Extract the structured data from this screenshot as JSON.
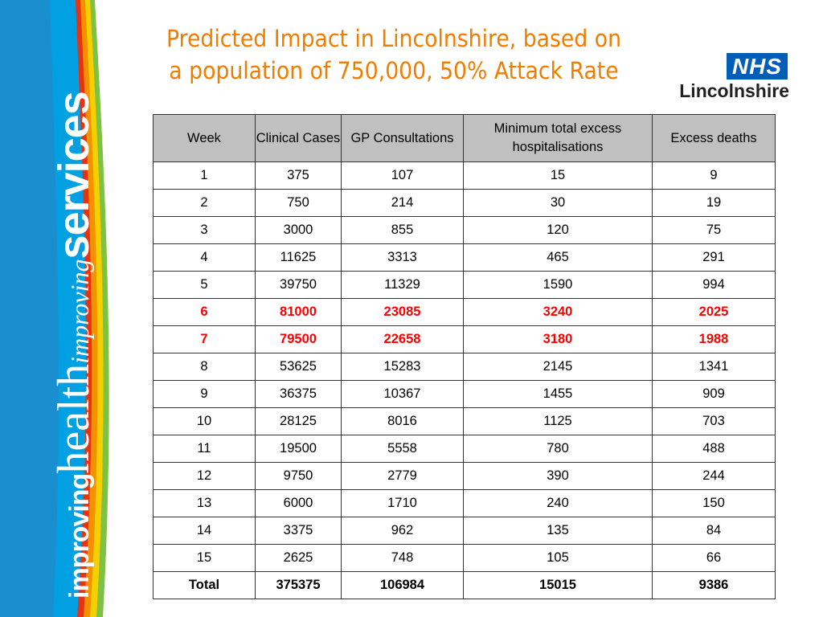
{
  "title_line1": "Predicted Impact in Lincolnshire, based on",
  "title_line2": "a population of 750,000, 50% Attack Rate",
  "logo": {
    "nhs": "NHS",
    "org": "Lincolnshire"
  },
  "banner": {
    "part1": "improving",
    "part2": "health",
    "part3": "improving",
    "part4": "services"
  },
  "colors": {
    "title": "#f07d00",
    "highlight": "#ff0000",
    "header_bg": "#c0c0c0",
    "nhs_blue": "#005eb8"
  },
  "table": {
    "headers": [
      "Week",
      "Clinical Cases",
      "GP Consultations",
      "Minimum total excess hospitalisations",
      "Excess deaths"
    ],
    "rows": [
      [
        "1",
        "375",
        "107",
        "15",
        "9"
      ],
      [
        "2",
        "750",
        "214",
        "30",
        "19"
      ],
      [
        "3",
        "3000",
        "855",
        "120",
        "75"
      ],
      [
        "4",
        "11625",
        "3313",
        "465",
        "291"
      ],
      [
        "5",
        "39750",
        "11329",
        "1590",
        "994"
      ],
      [
        "6",
        "81000",
        "23085",
        "3240",
        "2025"
      ],
      [
        "7",
        "79500",
        "22658",
        "3180",
        "1988"
      ],
      [
        "8",
        "53625",
        "15283",
        "2145",
        "1341"
      ],
      [
        "9",
        "36375",
        "10367",
        "1455",
        "909"
      ],
      [
        "10",
        "28125",
        "8016",
        "1125",
        "703"
      ],
      [
        "11",
        "19500",
        "5558",
        "780",
        "488"
      ],
      [
        "12",
        "9750",
        "2779",
        "390",
        "244"
      ],
      [
        "13",
        "6000",
        "1710",
        "240",
        "150"
      ],
      [
        "14",
        "3375",
        "962",
        "135",
        "84"
      ],
      [
        "15",
        "2625",
        "748",
        "105",
        "66"
      ]
    ],
    "total": [
      "Total",
      "375375",
      "106984",
      "15015",
      "9386"
    ]
  }
}
